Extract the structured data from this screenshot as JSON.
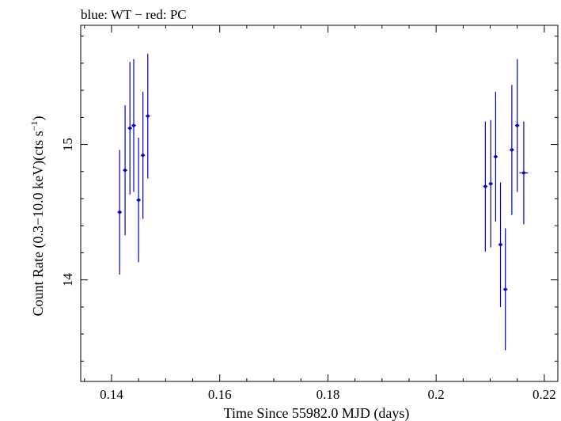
{
  "chart_data": {
    "type": "scatter",
    "title": "blue: WT − red: PC",
    "xlabel": "Time Since 55982.0 MJD (days)",
    "ylabel_main": "Count Rate (0.3−10.0 keV)(cts s",
    "ylabel_sup": "−1",
    "ylabel_close": ")",
    "xlim": [
      0.1343,
      0.2225
    ],
    "ylim": [
      13.25,
      15.88
    ],
    "x_ticks": [
      {
        "value": 0.14,
        "label": "0.14"
      },
      {
        "value": 0.16,
        "label": "0.16"
      },
      {
        "value": 0.18,
        "label": "0.18"
      },
      {
        "value": 0.2,
        "label": "0.2"
      },
      {
        "value": 0.22,
        "label": "0.22"
      }
    ],
    "x_minor_step": 0.005,
    "y_ticks": [
      {
        "value": 14,
        "label": "14"
      },
      {
        "value": 15,
        "label": "15"
      }
    ],
    "y_minor_step": 0.2,
    "grid": false,
    "series": [
      {
        "color": "#0000cc",
        "points": [
          {
            "x": 0.1415,
            "y": 14.5,
            "xerr": 0.0004,
            "yerr": 0.46
          },
          {
            "x": 0.1425,
            "y": 14.81,
            "xerr": 0.0004,
            "yerr": 0.48
          },
          {
            "x": 0.1434,
            "y": 15.12,
            "xerr": 0.0004,
            "yerr": 0.49
          },
          {
            "x": 0.1441,
            "y": 15.14,
            "xerr": 0.0004,
            "yerr": 0.49
          },
          {
            "x": 0.145,
            "y": 14.59,
            "xerr": 0.0004,
            "yerr": 0.46
          },
          {
            "x": 0.1458,
            "y": 14.92,
            "xerr": 0.0004,
            "yerr": 0.47
          },
          {
            "x": 0.1467,
            "y": 15.21,
            "xerr": 0.0004,
            "yerr": 0.46
          },
          {
            "x": 0.2091,
            "y": 14.69,
            "xerr": 0.0004,
            "yerr": 0.48
          },
          {
            "x": 0.2101,
            "y": 14.71,
            "xerr": 0.0004,
            "yerr": 0.47
          },
          {
            "x": 0.211,
            "y": 14.91,
            "xerr": 0.0004,
            "yerr": 0.48
          },
          {
            "x": 0.2119,
            "y": 14.26,
            "xerr": 0.0004,
            "yerr": 0.46
          },
          {
            "x": 0.2128,
            "y": 13.93,
            "xerr": 0.0004,
            "yerr": 0.45
          },
          {
            "x": 0.214,
            "y": 14.96,
            "xerr": 0.0004,
            "yerr": 0.48
          },
          {
            "x": 0.215,
            "y": 15.14,
            "xerr": 0.0004,
            "yerr": 0.49
          },
          {
            "x": 0.2162,
            "y": 14.79,
            "xerr": 0.0008,
            "yerr": 0.38
          }
        ]
      }
    ]
  }
}
